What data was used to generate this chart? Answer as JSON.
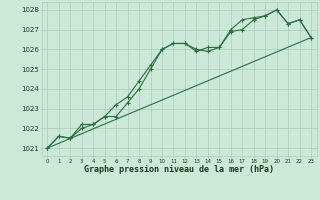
{
  "title": "Graphe pression niveau de la mer (hPa)",
  "bg_color": "#cce8d8",
  "grid_color": "#aaccbb",
  "line_color": "#2d6e3e",
  "xlim": [
    -0.5,
    23.5
  ],
  "ylim": [
    1020.6,
    1028.4
  ],
  "yticks": [
    1021,
    1022,
    1023,
    1024,
    1025,
    1026,
    1027,
    1028
  ],
  "xticks": [
    0,
    1,
    2,
    3,
    4,
    5,
    6,
    7,
    8,
    9,
    10,
    11,
    12,
    13,
    14,
    15,
    16,
    17,
    18,
    19,
    20,
    21,
    22,
    23
  ],
  "series1_x": [
    0,
    1,
    2,
    3,
    4,
    5,
    6,
    7,
    8,
    9,
    10,
    11,
    12,
    13,
    14,
    15,
    16,
    17,
    18,
    19,
    20,
    21,
    22,
    23
  ],
  "series1_y": [
    1021.0,
    1021.6,
    1021.5,
    1022.0,
    1022.2,
    1022.6,
    1022.6,
    1023.3,
    1024.0,
    1025.0,
    1026.0,
    1026.3,
    1026.3,
    1026.0,
    1025.9,
    1026.1,
    1026.9,
    1027.0,
    1027.5,
    1027.7,
    1028.0,
    1027.3,
    1027.5,
    1026.6
  ],
  "series2_x": [
    0,
    1,
    2,
    3,
    4,
    5,
    6,
    7,
    8,
    9,
    10,
    11,
    12,
    13,
    14,
    15,
    16,
    17,
    18,
    19,
    20,
    21,
    22,
    23
  ],
  "series2_y": [
    1021.0,
    1021.6,
    1021.5,
    1022.2,
    1022.2,
    1022.6,
    1023.2,
    1023.6,
    1024.4,
    1025.2,
    1026.0,
    1026.3,
    1026.3,
    1025.9,
    1026.1,
    1026.1,
    1027.0,
    1027.5,
    1027.6,
    1027.7,
    1028.0,
    1027.3,
    1027.5,
    1026.6
  ],
  "series3_x": [
    0,
    23
  ],
  "series3_y": [
    1021.0,
    1026.6
  ],
  "xlabel_fontsize": 6,
  "tick_fontsize": 5
}
